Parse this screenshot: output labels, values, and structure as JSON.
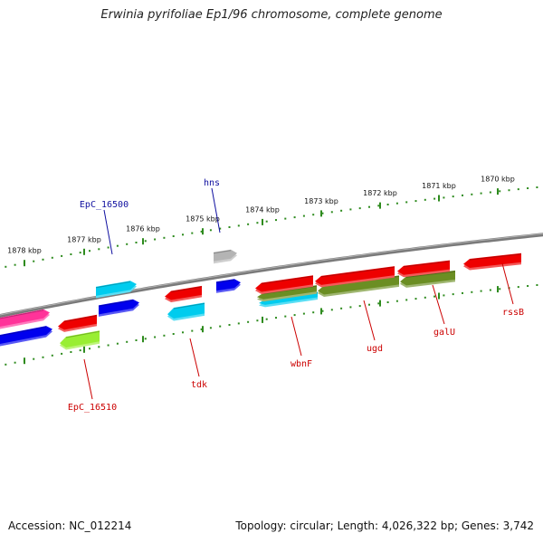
{
  "title": "Erwinia pyrifoliae Ep1/96 chromosome, complete genome",
  "footer": {
    "accession": "Accession: NC_012214",
    "summary": "Topology: circular; Length: 4,026,322 bp; Genes: 3,742"
  },
  "colors": {
    "backbone": "#7a7a7a",
    "tick": "#2e8b1e",
    "label_forward": "#1010a0",
    "label_reverse": "#cc0000",
    "red": "#ee0000",
    "pink": "#ff3399",
    "blue": "#0000ee",
    "cyan": "#00ccee",
    "gray": "#b4b4b4",
    "olive": "#6b8e23",
    "lime": "#99ee33"
  },
  "ticks": [
    "1870 kbp",
    "1871 kbp",
    "1872 kbp",
    "1873 kbp",
    "1874 kbp",
    "1875 kbp",
    "1876 kbp",
    "1877 kbp",
    "1878 kbp"
  ],
  "genes": [
    {
      "id": "rssb",
      "color": "red",
      "label": "rssB",
      "strand": "reverse",
      "direction": "left"
    },
    {
      "id": "galu",
      "color": "olive",
      "label": "galU",
      "strand": "reverse",
      "direction": "left"
    },
    {
      "id": "galu-outer",
      "color": "red",
      "label": "",
      "strand": "reverse",
      "direction": "left"
    },
    {
      "id": "ugd",
      "color": "olive",
      "label": "ugd",
      "strand": "reverse",
      "direction": "left"
    },
    {
      "id": "ugd-outer",
      "color": "red",
      "label": "",
      "strand": "reverse",
      "direction": "left"
    },
    {
      "id": "wbnf",
      "color": "cyan",
      "label": "wbnF",
      "strand": "reverse",
      "direction": "left"
    },
    {
      "id": "wbnf-middle",
      "color": "olive",
      "label": "",
      "strand": "reverse",
      "direction": "left"
    },
    {
      "id": "wbnf-outer",
      "color": "red",
      "label": "",
      "strand": "reverse",
      "direction": "left"
    },
    {
      "id": "hns-outer",
      "color": "gray",
      "label": "hns",
      "strand": "forward",
      "direction": "right"
    },
    {
      "id": "hns-inner",
      "color": "blue",
      "label": "",
      "strand": "forward",
      "direction": "right"
    },
    {
      "id": "tdk-outer",
      "color": "red",
      "label": "",
      "strand": "reverse",
      "direction": "left"
    },
    {
      "id": "tdk-inner",
      "color": "cyan",
      "label": "tdk",
      "strand": "reverse",
      "direction": "left"
    },
    {
      "id": "epc16500-outer",
      "color": "cyan",
      "label": "EpC_16500",
      "strand": "forward",
      "direction": "right"
    },
    {
      "id": "epc16500-inner",
      "color": "blue",
      "label": "",
      "strand": "forward",
      "direction": "right"
    },
    {
      "id": "epc16510-outer",
      "color": "red",
      "label": "",
      "strand": "reverse",
      "direction": "left"
    },
    {
      "id": "epc16510-inner",
      "color": "lime",
      "label": "EpC_16510",
      "strand": "reverse",
      "direction": "left"
    },
    {
      "id": "left-outer",
      "color": "pink",
      "label": "",
      "strand": "forward",
      "direction": "right"
    },
    {
      "id": "left-inner",
      "color": "blue",
      "label": "",
      "strand": "forward",
      "direction": "right"
    }
  ]
}
